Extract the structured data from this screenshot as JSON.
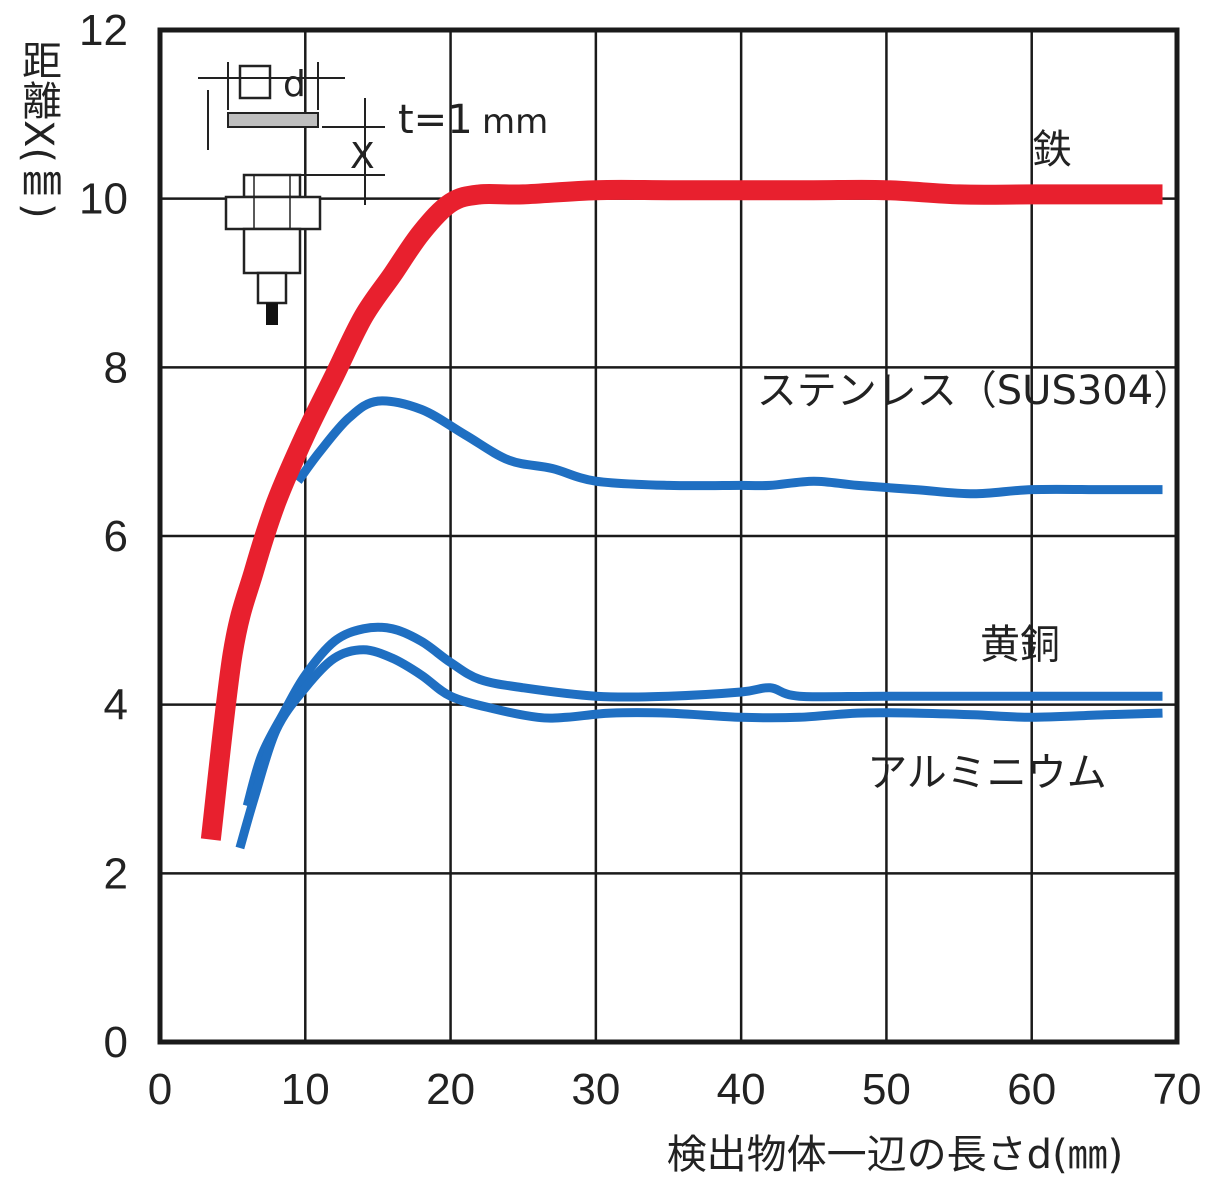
{
  "chart_data": {
    "type": "line",
    "title": "",
    "xlabel": "検出物体一辺の長さd(㎜)",
    "ylabel": "距離X(㎜)",
    "xlim": [
      0,
      70
    ],
    "ylim": [
      0,
      12
    ],
    "x_ticks": [
      "0",
      "10",
      "20",
      "30",
      "40",
      "50",
      "60",
      "70"
    ],
    "y_ticks": [
      "0",
      "2",
      "4",
      "6",
      "8",
      "10",
      "12"
    ],
    "grid": true,
    "inset": {
      "thickness_label": "t=1",
      "thickness_unit": "mm",
      "side_label": "d",
      "distance_label": "X"
    },
    "series": [
      {
        "name": "鉄",
        "color": "#e8202e",
        "points": [
          [
            3.5,
            2.4
          ],
          [
            5,
            4.6
          ],
          [
            6.5,
            5.6
          ],
          [
            8,
            6.4
          ],
          [
            10,
            7.2
          ],
          [
            12,
            7.9
          ],
          [
            14,
            8.6
          ],
          [
            16,
            9.1
          ],
          [
            18,
            9.6
          ],
          [
            20,
            9.95
          ],
          [
            22,
            10.05
          ],
          [
            25,
            10.05
          ],
          [
            30,
            10.1
          ],
          [
            35,
            10.1
          ],
          [
            40,
            10.1
          ],
          [
            45,
            10.1
          ],
          [
            50,
            10.1
          ],
          [
            55,
            10.05
          ],
          [
            60,
            10.05
          ],
          [
            65,
            10.05
          ],
          [
            69,
            10.05
          ]
        ]
      },
      {
        "name": "ステンレス（SUS304）",
        "color": "#1f6fc2",
        "points": [
          [
            9.5,
            6.65
          ],
          [
            11,
            7.0
          ],
          [
            13,
            7.4
          ],
          [
            15,
            7.6
          ],
          [
            18,
            7.5
          ],
          [
            21,
            7.2
          ],
          [
            24,
            6.9
          ],
          [
            27,
            6.8
          ],
          [
            30,
            6.65
          ],
          [
            35,
            6.6
          ],
          [
            40,
            6.6
          ],
          [
            42,
            6.6
          ],
          [
            45,
            6.65
          ],
          [
            48,
            6.6
          ],
          [
            52,
            6.55
          ],
          [
            56,
            6.5
          ],
          [
            60,
            6.55
          ],
          [
            65,
            6.55
          ],
          [
            69,
            6.55
          ]
        ]
      },
      {
        "name": "黄銅",
        "color": "#1f6fc2",
        "points": [
          [
            6,
            2.8
          ],
          [
            7,
            3.4
          ],
          [
            8.5,
            3.9
          ],
          [
            10,
            4.35
          ],
          [
            12,
            4.75
          ],
          [
            14,
            4.9
          ],
          [
            16,
            4.9
          ],
          [
            18,
            4.75
          ],
          [
            20,
            4.5
          ],
          [
            22,
            4.3
          ],
          [
            25,
            4.2
          ],
          [
            30,
            4.1
          ],
          [
            35,
            4.1
          ],
          [
            40,
            4.15
          ],
          [
            42,
            4.2
          ],
          [
            44,
            4.1
          ],
          [
            50,
            4.1
          ],
          [
            60,
            4.1
          ],
          [
            69,
            4.1
          ]
        ]
      },
      {
        "name": "アルミニウム",
        "color": "#1f6fc2",
        "points": [
          [
            5.5,
            2.3
          ],
          [
            6.5,
            2.9
          ],
          [
            8,
            3.7
          ],
          [
            10,
            4.2
          ],
          [
            12,
            4.55
          ],
          [
            14,
            4.65
          ],
          [
            16,
            4.55
          ],
          [
            18,
            4.35
          ],
          [
            20,
            4.1
          ],
          [
            23,
            3.95
          ],
          [
            26,
            3.85
          ],
          [
            28,
            3.85
          ],
          [
            31,
            3.9
          ],
          [
            35,
            3.9
          ],
          [
            40,
            3.85
          ],
          [
            44,
            3.85
          ],
          [
            48,
            3.9
          ],
          [
            52,
            3.9
          ],
          [
            56,
            3.88
          ],
          [
            60,
            3.85
          ],
          [
            65,
            3.88
          ],
          [
            69,
            3.9
          ]
        ]
      }
    ]
  }
}
